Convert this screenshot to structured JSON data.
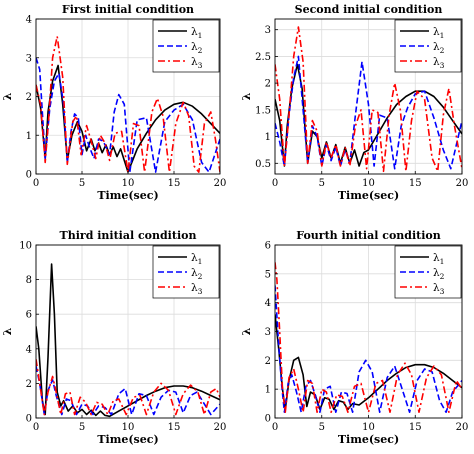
{
  "chart_data": [
    {
      "type": "line",
      "title": "First initial condition",
      "xlabel": "Time(sec)",
      "ylabel": "λ",
      "xlim": [
        0,
        20
      ],
      "ylim": [
        0,
        4
      ],
      "xticks": [
        0,
        5,
        10,
        15,
        20
      ],
      "yticks": [
        0,
        1,
        2,
        3,
        4
      ],
      "grid": true,
      "legend_position": "top-right",
      "series": [
        {
          "name": "λ1",
          "color": "#000000",
          "style": "solid",
          "x": [
            0,
            0.5,
            1,
            1.3,
            1.8,
            2.4,
            2.9,
            3.4,
            3.9,
            4.5,
            5.0,
            5.5,
            6.0,
            6.4,
            6.8,
            7.2,
            7.6,
            8.0,
            8.4,
            8.8,
            9.2,
            10,
            11,
            12,
            13,
            14,
            15,
            16,
            17,
            18,
            19,
            20
          ],
          "y": [
            2.3,
            1.7,
            0.4,
            1.6,
            2.4,
            2.8,
            1.8,
            0.35,
            1.0,
            1.35,
            1.1,
            0.6,
            0.9,
            0.6,
            0.8,
            0.55,
            0.75,
            0.5,
            0.7,
            0.45,
            0.65,
            0.05,
            0.65,
            1.05,
            1.4,
            1.65,
            1.8,
            1.85,
            1.75,
            1.55,
            1.3,
            1.05
          ]
        },
        {
          "name": "λ2",
          "color": "#0000ff",
          "style": "dashed",
          "x": [
            0,
            0.4,
            1,
            1.5,
            2,
            2.5,
            3,
            3.4,
            3.8,
            4.2,
            4.6,
            5.0,
            5.4,
            5.8,
            6.3,
            6.8,
            7.3,
            8.0,
            8.5,
            9.0,
            9.6,
            10.2,
            11,
            12,
            13,
            14,
            15,
            16,
            17,
            18,
            18.8,
            20
          ],
          "y": [
            3.0,
            2.7,
            0.4,
            1.7,
            2.4,
            2.6,
            1.8,
            0.3,
            1.1,
            1.55,
            1.45,
            0.5,
            1.0,
            0.7,
            0.4,
            0.9,
            0.85,
            0.5,
            1.6,
            2.05,
            1.8,
            0.05,
            1.4,
            1.45,
            0.05,
            1.35,
            1.65,
            1.8,
            1.4,
            0.3,
            0.05,
            0.9
          ]
        },
        {
          "name": "λ3",
          "color": "#ff0000",
          "style": "dashdot",
          "x": [
            0,
            0.5,
            1,
            1.4,
            1.8,
            2.3,
            2.9,
            3.4,
            4.0,
            4.4,
            4.9,
            5.5,
            6.0,
            6.5,
            7.0,
            7.5,
            8.0,
            8.6,
            9.3,
            10.0,
            10.6,
            11.2,
            11.8,
            12.6,
            13.2,
            13.8,
            14.5,
            15.2,
            16.0,
            16.6,
            17.2,
            17.7,
            18.3,
            19.0,
            19.5,
            20
          ],
          "y": [
            2.3,
            1.8,
            0.3,
            1.5,
            3.0,
            3.55,
            2.5,
            0.25,
            1.35,
            1.5,
            0.5,
            1.25,
            0.85,
            0.4,
            1.0,
            0.8,
            0.35,
            1.05,
            1.1,
            0.05,
            1.3,
            1.25,
            0.05,
            1.6,
            1.95,
            1.5,
            0.05,
            1.3,
            1.85,
            1.5,
            0.2,
            0.05,
            1.3,
            1.6,
            0.9,
            0.05
          ]
        }
      ]
    },
    {
      "type": "line",
      "title": "Second initial condition",
      "xlabel": "Time(sec)",
      "ylabel": "λ",
      "xlim": [
        0,
        20
      ],
      "ylim": [
        0.3,
        3.2
      ],
      "xticks": [
        0,
        5,
        10,
        15,
        20
      ],
      "yticks": [
        0.5,
        1,
        1.5,
        2,
        2.5,
        3
      ],
      "grid": true,
      "legend_position": "top-right",
      "series": [
        {
          "name": "λ1",
          "color": "#000000",
          "style": "solid",
          "x": [
            0,
            0.5,
            1,
            1.3,
            1.8,
            2.4,
            2.9,
            3.5,
            4.0,
            4.5,
            5.0,
            5.5,
            6.0,
            6.5,
            7.0,
            7.5,
            8.0,
            8.5,
            9.0,
            9.5,
            10,
            11,
            12,
            13,
            14,
            15,
            16,
            17,
            18,
            19,
            20
          ],
          "y": [
            1.7,
            1.3,
            0.45,
            1.2,
            1.9,
            2.35,
            1.9,
            0.5,
            1.1,
            1.0,
            0.6,
            0.9,
            0.6,
            0.85,
            0.5,
            0.8,
            0.5,
            0.75,
            0.45,
            0.7,
            0.75,
            1.05,
            1.35,
            1.6,
            1.75,
            1.85,
            1.85,
            1.75,
            1.55,
            1.3,
            1.05
          ]
        },
        {
          "name": "λ2",
          "color": "#0000ff",
          "style": "dashed",
          "x": [
            0,
            0.5,
            1,
            1.5,
            2,
            2.5,
            3,
            3.5,
            4.0,
            4.5,
            5.0,
            5.5,
            6.0,
            6.5,
            7.0,
            7.5,
            8.0,
            8.6,
            9.3,
            10.0,
            10.6,
            11.2,
            12,
            12.8,
            13.5,
            14.2,
            15,
            16,
            17,
            18,
            18.8,
            20
          ],
          "y": [
            1.25,
            0.9,
            0.45,
            1.4,
            2.1,
            2.5,
            1.5,
            0.5,
            1.2,
            1.0,
            0.45,
            0.85,
            0.55,
            0.8,
            0.45,
            0.75,
            0.5,
            1.4,
            2.4,
            1.6,
            0.45,
            1.4,
            1.35,
            0.4,
            1.2,
            1.55,
            1.8,
            1.85,
            1.35,
            0.75,
            0.4,
            1.3
          ]
        },
        {
          "name": "λ3",
          "color": "#ff0000",
          "style": "dashdot",
          "x": [
            0,
            0.5,
            1,
            1.5,
            2,
            2.5,
            3,
            3.5,
            4.0,
            4.5,
            5.0,
            5.5,
            6.0,
            6.5,
            7.0,
            7.5,
            8.0,
            8.6,
            9.2,
            9.8,
            10.4,
            11.0,
            11.6,
            12.2,
            12.8,
            13.4,
            14.0,
            14.6,
            15.2,
            16.0,
            16.8,
            17.4,
            18.0,
            18.6,
            19.2,
            20
          ],
          "y": [
            2.35,
            1.7,
            0.45,
            1.4,
            2.5,
            3.05,
            2.4,
            0.5,
            1.3,
            1.1,
            0.45,
            0.9,
            0.6,
            0.85,
            0.45,
            0.8,
            0.45,
            1.2,
            1.5,
            0.4,
            1.5,
            1.45,
            0.35,
            1.4,
            2.0,
            1.5,
            0.35,
            1.3,
            1.85,
            1.7,
            0.6,
            0.35,
            1.4,
            1.9,
            1.2,
            0.4
          ]
        }
      ]
    },
    {
      "type": "line",
      "title": "Third initial condition",
      "xlabel": "Time(sec)",
      "ylabel": "λ",
      "xlim": [
        0,
        20
      ],
      "ylim": [
        0,
        10
      ],
      "xticks": [
        0,
        5,
        10,
        15,
        20
      ],
      "yticks": [
        0,
        2,
        4,
        6,
        8,
        10
      ],
      "grid": true,
      "legend_position": "top-right",
      "series": [
        {
          "name": "λ1",
          "color": "#000000",
          "style": "solid",
          "x": [
            0,
            0.3,
            0.7,
            1.0,
            1.3,
            1.7,
            2.0,
            2.3,
            2.7,
            3.0,
            3.5,
            4.0,
            4.5,
            5.0,
            5.5,
            6.0,
            6.5,
            7.0,
            7.5,
            8.0,
            9,
            10,
            11,
            12,
            13,
            14,
            15,
            16,
            17,
            18,
            19,
            20
          ],
          "y": [
            5.3,
            4.0,
            1.0,
            0.2,
            3.5,
            8.9,
            6.0,
            1.5,
            0.7,
            1.0,
            0.4,
            0.7,
            0.3,
            0.5,
            0.2,
            0.45,
            0.15,
            0.4,
            0.15,
            0.1,
            0.4,
            0.7,
            1.0,
            1.3,
            1.55,
            1.75,
            1.85,
            1.85,
            1.75,
            1.55,
            1.3,
            1.05
          ]
        },
        {
          "name": "λ2",
          "color": "#0000ff",
          "style": "dashed",
          "x": [
            0,
            0.4,
            0.9,
            1.3,
            1.8,
            2.2,
            2.8,
            3.3,
            3.8,
            4.4,
            5.0,
            5.6,
            6.2,
            6.8,
            7.5,
            8.2,
            9.0,
            9.7,
            10.4,
            11.2,
            12.0,
            12.8,
            13.6,
            14.4,
            15.2,
            16.0,
            16.8,
            17.5,
            18.2,
            19.0,
            20
          ],
          "y": [
            3.0,
            2.0,
            0.2,
            1.6,
            2.2,
            1.3,
            0.2,
            1.1,
            1.0,
            0.2,
            0.8,
            0.7,
            0.2,
            0.7,
            0.6,
            0.2,
            1.4,
            1.7,
            0.2,
            1.4,
            1.3,
            0.2,
            1.2,
            1.6,
            1.5,
            0.3,
            1.3,
            1.5,
            0.9,
            0.2,
            0.8
          ]
        },
        {
          "name": "λ3",
          "color": "#ff0000",
          "style": "dashdot",
          "x": [
            0,
            0.4,
            0.9,
            1.3,
            1.8,
            2.2,
            2.7,
            3.2,
            3.7,
            4.2,
            4.8,
            5.4,
            6.0,
            6.6,
            7.2,
            7.8,
            8.4,
            9.0,
            9.8,
            10.6,
            11.3,
            12.0,
            12.8,
            13.6,
            14.4,
            15.2,
            16.0,
            16.8,
            17.6,
            18.3,
            19.0,
            19.6,
            20
          ],
          "y": [
            3.4,
            2.0,
            0.2,
            1.5,
            2.4,
            1.5,
            0.2,
            1.4,
            1.5,
            0.2,
            1.2,
            0.9,
            0.2,
            0.9,
            0.8,
            0.2,
            1.0,
            1.1,
            0.2,
            1.2,
            1.3,
            0.2,
            1.5,
            2.0,
            1.6,
            0.2,
            1.4,
            1.9,
            1.5,
            0.2,
            1.5,
            1.7,
            1.2
          ]
        }
      ]
    },
    {
      "type": "line",
      "title": "Fourth initial condition",
      "xlabel": "Time(sec)",
      "ylabel": "λ",
      "xlim": [
        0,
        20
      ],
      "ylim": [
        0,
        6
      ],
      "xticks": [
        0,
        5,
        10,
        15,
        20
      ],
      "yticks": [
        0,
        1,
        2,
        3,
        4,
        5,
        6
      ],
      "grid": true,
      "legend_position": "top-right",
      "series": [
        {
          "name": "λ1",
          "color": "#000000",
          "style": "solid",
          "x": [
            0,
            0.4,
            0.8,
            1.1,
            1.5,
            2.0,
            2.5,
            3.0,
            3.4,
            3.8,
            4.3,
            4.8,
            5.3,
            5.8,
            6.3,
            6.8,
            7.3,
            7.8,
            8.3,
            9,
            10,
            11,
            12,
            13,
            14,
            15,
            16,
            17,
            18,
            19,
            20
          ],
          "y": [
            3.6,
            2.4,
            1.0,
            0.3,
            1.3,
            2.0,
            2.1,
            1.5,
            0.4,
            0.9,
            0.8,
            0.3,
            0.7,
            0.65,
            0.3,
            0.6,
            0.55,
            0.3,
            0.5,
            0.45,
            0.7,
            1.0,
            1.3,
            1.55,
            1.75,
            1.85,
            1.85,
            1.75,
            1.55,
            1.3,
            1.05
          ]
        },
        {
          "name": "λ2",
          "color": "#0000ff",
          "style": "dashed",
          "x": [
            0,
            0.3,
            0.7,
            1.0,
            1.4,
            1.8,
            2.3,
            2.8,
            3.3,
            3.8,
            4.3,
            4.8,
            5.3,
            5.9,
            6.5,
            7.1,
            7.7,
            8.3,
            9.0,
            9.7,
            10.4,
            11.2,
            12.0,
            12.8,
            13.6,
            14.4,
            15.2,
            16.0,
            16.8,
            17.6,
            18.3,
            19.0,
            20
          ],
          "y": [
            4.6,
            3.0,
            1.2,
            0.2,
            1.2,
            1.5,
            0.9,
            0.2,
            1.1,
            1.3,
            0.8,
            0.2,
            1.0,
            1.1,
            0.2,
            0.9,
            0.85,
            0.2,
            1.6,
            2.0,
            1.6,
            0.2,
            1.4,
            1.8,
            1.0,
            0.2,
            1.3,
            1.7,
            1.6,
            0.6,
            0.2,
            0.9,
            1.3
          ]
        },
        {
          "name": "λ3",
          "color": "#ff0000",
          "style": "dashdot",
          "x": [
            0,
            0.2,
            0.5,
            0.8,
            1.1,
            1.5,
            2.0,
            2.5,
            3.0,
            3.5,
            4.0,
            4.5,
            5.0,
            5.5,
            6.0,
            6.6,
            7.2,
            7.8,
            8.5,
            9.2,
            10.0,
            10.8,
            11.5,
            12.3,
            13.1,
            13.9,
            14.6,
            15.4,
            16.2,
            17.0,
            17.8,
            18.6,
            19.4,
            20
          ],
          "y": [
            5.4,
            4.8,
            3.0,
            1.0,
            0.2,
            1.4,
            1.7,
            1.0,
            0.2,
            1.3,
            1.2,
            0.2,
            1.0,
            0.9,
            0.2,
            0.8,
            0.75,
            0.2,
            1.1,
            1.2,
            0.2,
            1.2,
            1.3,
            0.2,
            1.5,
            1.9,
            1.5,
            0.2,
            1.4,
            1.8,
            1.5,
            0.2,
            1.3,
            1.0
          ]
        }
      ]
    }
  ]
}
